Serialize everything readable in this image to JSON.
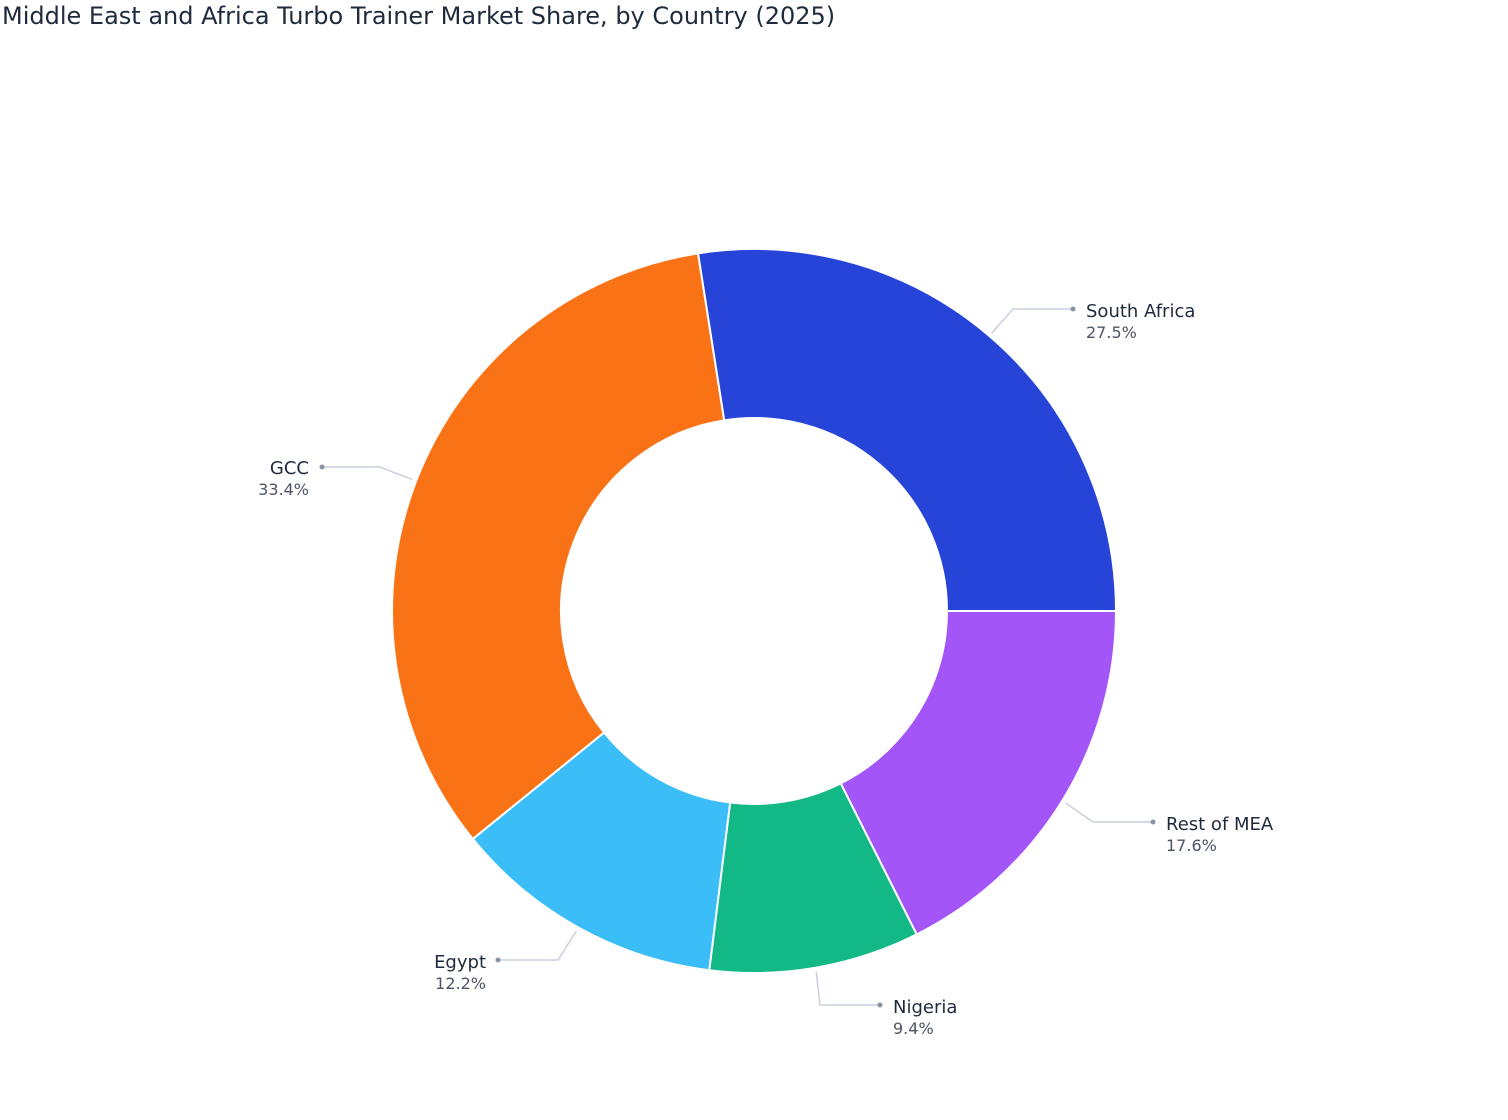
{
  "chart_data": {
    "type": "pie",
    "title": "Middle East and Africa Turbo Trainer Market Share, by Country (2025)",
    "hole": true,
    "slices": [
      {
        "label": "South Africa",
        "value": 27.5,
        "display": "27.5%",
        "color": "#2744d9"
      },
      {
        "label": "Rest of MEA",
        "value": 17.6,
        "display": "17.6%",
        "color": "#a355f7"
      },
      {
        "label": "Nigeria",
        "value": 9.4,
        "display": "9.4%",
        "color": "#12b886"
      },
      {
        "label": "Egypt",
        "value": 12.2,
        "display": "12.2%",
        "color": "#3bbdf8"
      },
      {
        "label": "GCC",
        "value": 33.4,
        "display": "33.4%",
        "color": "#f97316"
      }
    ],
    "leader_line_color": "#c8d0de",
    "dot_color": "#8a93a3"
  }
}
